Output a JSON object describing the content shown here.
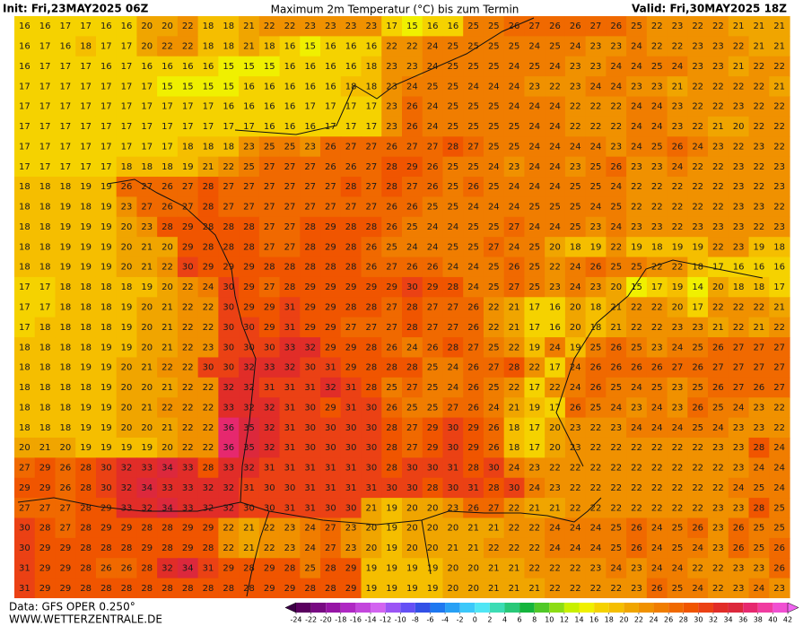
{
  "header": {
    "init": "Init: Fri,23MAY2025 06Z",
    "title": "Maximum 2m Temperatur (°C) bis zum Termin",
    "valid": "Valid: Fri,30MAY2025 18Z"
  },
  "map": {
    "rows": [
      [
        16,
        16,
        17,
        17,
        16,
        16,
        20,
        20,
        22,
        18,
        18,
        21,
        22,
        22,
        23,
        23,
        23,
        23,
        17,
        15,
        16,
        16,
        25,
        25,
        26,
        27,
        26,
        26,
        27,
        26,
        25,
        22,
        23,
        22,
        22,
        21,
        21,
        21
      ],
      [
        16,
        17,
        16,
        18,
        17,
        17,
        20,
        22,
        22,
        18,
        18,
        21,
        18,
        16,
        15,
        16,
        16,
        16,
        22,
        22,
        24,
        25,
        25,
        25,
        25,
        24,
        25,
        24,
        23,
        23,
        24,
        22,
        22,
        23,
        23,
        22,
        21,
        21
      ],
      [
        16,
        17,
        17,
        17,
        16,
        17,
        16,
        16,
        16,
        16,
        15,
        15,
        15,
        16,
        16,
        16,
        16,
        18,
        23,
        23,
        24,
        25,
        25,
        25,
        24,
        25,
        24,
        23,
        23,
        24,
        24,
        25,
        24,
        23,
        23,
        21,
        22,
        22
      ],
      [
        17,
        17,
        17,
        17,
        17,
        17,
        17,
        15,
        15,
        15,
        15,
        16,
        16,
        16,
        16,
        16,
        18,
        18,
        23,
        24,
        25,
        25,
        24,
        24,
        24,
        23,
        22,
        23,
        24,
        24,
        23,
        23,
        21,
        22,
        22,
        22,
        22,
        21
      ],
      [
        17,
        17,
        17,
        17,
        17,
        17,
        17,
        17,
        17,
        17,
        16,
        16,
        16,
        16,
        17,
        17,
        17,
        17,
        23,
        26,
        24,
        25,
        25,
        25,
        24,
        24,
        24,
        22,
        22,
        22,
        24,
        24,
        23,
        22,
        22,
        23,
        22,
        22
      ],
      [
        17,
        17,
        17,
        17,
        17,
        17,
        17,
        17,
        17,
        17,
        17,
        17,
        16,
        16,
        16,
        17,
        17,
        17,
        23,
        26,
        24,
        25,
        25,
        25,
        25,
        24,
        24,
        22,
        22,
        22,
        24,
        24,
        23,
        22,
        21,
        20,
        22,
        22
      ],
      [
        17,
        17,
        17,
        17,
        17,
        17,
        17,
        17,
        18,
        18,
        18,
        23,
        25,
        25,
        23,
        26,
        27,
        27,
        26,
        27,
        27,
        28,
        27,
        25,
        25,
        24,
        24,
        24,
        24,
        23,
        24,
        25,
        26,
        24,
        23,
        22,
        23,
        22
      ],
      [
        17,
        17,
        17,
        17,
        17,
        18,
        18,
        18,
        19,
        21,
        22,
        25,
        27,
        27,
        27,
        26,
        26,
        27,
        28,
        29,
        26,
        25,
        25,
        24,
        23,
        24,
        24,
        23,
        25,
        26,
        23,
        23,
        24,
        22,
        22,
        23,
        22,
        23
      ],
      [
        18,
        18,
        18,
        19,
        19,
        26,
        27,
        26,
        27,
        28,
        27,
        27,
        27,
        27,
        27,
        27,
        28,
        27,
        28,
        27,
        26,
        25,
        26,
        25,
        24,
        24,
        24,
        25,
        25,
        24,
        22,
        22,
        22,
        22,
        22,
        23,
        22,
        23
      ],
      [
        18,
        18,
        19,
        18,
        19,
        23,
        27,
        26,
        27,
        28,
        27,
        27,
        27,
        27,
        27,
        27,
        27,
        27,
        26,
        26,
        25,
        25,
        24,
        24,
        24,
        25,
        25,
        25,
        24,
        25,
        22,
        22,
        22,
        22,
        22,
        23,
        23,
        22
      ],
      [
        18,
        18,
        19,
        19,
        19,
        20,
        23,
        28,
        29,
        28,
        28,
        28,
        27,
        27,
        28,
        29,
        28,
        28,
        26,
        25,
        24,
        24,
        25,
        25,
        27,
        24,
        24,
        25,
        23,
        24,
        23,
        23,
        22,
        23,
        23,
        23,
        22,
        23
      ],
      [
        18,
        18,
        19,
        19,
        19,
        20,
        21,
        20,
        29,
        28,
        28,
        28,
        27,
        27,
        28,
        29,
        28,
        26,
        25,
        24,
        24,
        25,
        25,
        27,
        24,
        25,
        20,
        18,
        19,
        22,
        19,
        18,
        19,
        19,
        22,
        23,
        19,
        18
      ],
      [
        18,
        18,
        19,
        19,
        19,
        20,
        21,
        22,
        30,
        29,
        29,
        29,
        28,
        28,
        28,
        28,
        28,
        26,
        27,
        26,
        26,
        24,
        24,
        25,
        26,
        25,
        22,
        24,
        26,
        25,
        25,
        22,
        22,
        18,
        17,
        16,
        16,
        16
      ],
      [
        17,
        17,
        18,
        18,
        18,
        18,
        19,
        20,
        22,
        24,
        30,
        29,
        27,
        28,
        29,
        29,
        29,
        29,
        29,
        30,
        29,
        28,
        24,
        25,
        27,
        25,
        23,
        24,
        23,
        20,
        15,
        17,
        19,
        14,
        20,
        18,
        18,
        17
      ],
      [
        17,
        17,
        18,
        18,
        18,
        19,
        20,
        21,
        22,
        22,
        30,
        29,
        29,
        31,
        29,
        29,
        28,
        28,
        27,
        28,
        27,
        27,
        26,
        22,
        21,
        17,
        16,
        20,
        18,
        21,
        22,
        22,
        20,
        17,
        22,
        22,
        22,
        21
      ],
      [
        17,
        18,
        18,
        18,
        18,
        19,
        20,
        21,
        22,
        22,
        30,
        30,
        29,
        31,
        29,
        29,
        27,
        27,
        27,
        28,
        27,
        27,
        26,
        22,
        21,
        17,
        16,
        20,
        18,
        21,
        22,
        22,
        23,
        23,
        21,
        22,
        21,
        22
      ],
      [
        18,
        18,
        18,
        18,
        19,
        19,
        20,
        21,
        22,
        23,
        30,
        30,
        30,
        33,
        32,
        29,
        29,
        28,
        26,
        24,
        26,
        28,
        27,
        25,
        22,
        19,
        24,
        19,
        25,
        26,
        25,
        23,
        24,
        25,
        26,
        27,
        27,
        27
      ],
      [
        18,
        18,
        18,
        19,
        19,
        20,
        21,
        22,
        22,
        30,
        30,
        32,
        33,
        32,
        30,
        31,
        29,
        28,
        28,
        28,
        25,
        24,
        26,
        27,
        28,
        22,
        17,
        24,
        26,
        26,
        26,
        26,
        27,
        26,
        27,
        27,
        27,
        27
      ],
      [
        18,
        18,
        18,
        18,
        19,
        20,
        20,
        21,
        22,
        22,
        32,
        32,
        31,
        31,
        31,
        32,
        31,
        28,
        25,
        27,
        25,
        24,
        26,
        25,
        22,
        17,
        22,
        24,
        26,
        25,
        24,
        25,
        23,
        25,
        26,
        27,
        26,
        27
      ],
      [
        18,
        18,
        18,
        19,
        19,
        20,
        21,
        22,
        22,
        22,
        33,
        32,
        32,
        31,
        30,
        29,
        31,
        30,
        26,
        25,
        25,
        27,
        26,
        24,
        21,
        19,
        17,
        26,
        25,
        24,
        23,
        24,
        23,
        26,
        25,
        24,
        23,
        22
      ],
      [
        18,
        18,
        18,
        19,
        19,
        20,
        20,
        21,
        22,
        22,
        36,
        35,
        32,
        31,
        30,
        30,
        30,
        30,
        28,
        27,
        29,
        30,
        29,
        26,
        18,
        17,
        20,
        23,
        22,
        23,
        24,
        24,
        24,
        25,
        24,
        23,
        23,
        22
      ],
      [
        20,
        21,
        20,
        19,
        19,
        19,
        19,
        20,
        22,
        22,
        36,
        35,
        32,
        31,
        30,
        30,
        30,
        30,
        28,
        27,
        29,
        30,
        29,
        26,
        18,
        17,
        20,
        23,
        22,
        22,
        22,
        22,
        22,
        22,
        23,
        23,
        28,
        24
      ],
      [
        27,
        29,
        26,
        28,
        30,
        32,
        33,
        34,
        33,
        28,
        33,
        32,
        31,
        31,
        31,
        31,
        31,
        30,
        28,
        30,
        30,
        31,
        28,
        30,
        24,
        23,
        22,
        22,
        22,
        22,
        22,
        22,
        22,
        22,
        22,
        23,
        24,
        24
      ],
      [
        29,
        29,
        26,
        28,
        30,
        32,
        34,
        33,
        33,
        32,
        32,
        31,
        30,
        30,
        31,
        31,
        31,
        31,
        30,
        30,
        28,
        30,
        31,
        28,
        30,
        24,
        23,
        22,
        22,
        22,
        22,
        22,
        22,
        22,
        22,
        24,
        25,
        24
      ],
      [
        27,
        27,
        27,
        28,
        29,
        33,
        32,
        34,
        33,
        32,
        32,
        30,
        30,
        31,
        31,
        30,
        30,
        21,
        19,
        20,
        20,
        23,
        26,
        27,
        22,
        21,
        21,
        22,
        22,
        22,
        22,
        22,
        22,
        22,
        23,
        23,
        28,
        25
      ],
      [
        30,
        28,
        27,
        28,
        29,
        29,
        28,
        28,
        29,
        29,
        22,
        21,
        22,
        23,
        24,
        27,
        23,
        20,
        19,
        20,
        20,
        20,
        21,
        21,
        22,
        22,
        24,
        24,
        24,
        25,
        26,
        24,
        25,
        26,
        23,
        26,
        25,
        25
      ],
      [
        30,
        29,
        29,
        28,
        28,
        28,
        29,
        28,
        29,
        28,
        22,
        21,
        22,
        23,
        24,
        27,
        23,
        20,
        19,
        20,
        20,
        21,
        21,
        22,
        22,
        22,
        24,
        24,
        24,
        25,
        26,
        24,
        25,
        24,
        23,
        26,
        25,
        26
      ],
      [
        31,
        29,
        29,
        28,
        26,
        26,
        28,
        32,
        34,
        31,
        29,
        28,
        29,
        28,
        25,
        28,
        29,
        19,
        19,
        19,
        19,
        20,
        20,
        21,
        21,
        22,
        22,
        22,
        23,
        24,
        23,
        24,
        24,
        22,
        22,
        23,
        23,
        26
      ],
      [
        31,
        29,
        29,
        28,
        28,
        28,
        28,
        28,
        28,
        28,
        28,
        28,
        29,
        29,
        28,
        28,
        29,
        19,
        19,
        19,
        19,
        20,
        20,
        21,
        21,
        21,
        22,
        22,
        22,
        22,
        23,
        26,
        25,
        24,
        22,
        23,
        24,
        23
      ]
    ]
  },
  "colorbar": {
    "ticks": [
      -24,
      -22,
      -20,
      -18,
      -16,
      -14,
      -12,
      -10,
      -8,
      -6,
      -4,
      -2,
      0,
      2,
      4,
      6,
      8,
      10,
      12,
      14,
      16,
      18,
      20,
      22,
      24,
      26,
      28,
      30,
      32,
      34,
      36,
      38,
      40,
      42
    ],
    "colors": [
      "#3c0046",
      "#5a005f",
      "#780a82",
      "#9614a5",
      "#af28c3",
      "#c346dc",
      "#d264f0",
      "#9b55f5",
      "#6450f5",
      "#3250e6",
      "#1e78f0",
      "#28a0f5",
      "#3cc8fa",
      "#50e6f5",
      "#3cdcb4",
      "#28c878",
      "#14b43c",
      "#50c828",
      "#8cdc14",
      "#c8f000",
      "#f0f000",
      "#f5d200",
      "#f5be00",
      "#f0a500",
      "#f09100",
      "#f07d00",
      "#f06900",
      "#f05500",
      "#eb4114",
      "#e12d28",
      "#dc283c",
      "#e6286e",
      "#f03ca0",
      "#f050d2",
      "#f064f0"
    ]
  },
  "footer": {
    "source": "Data: GFS OPER 0.250°",
    "site": "WWW.WETTERZENTRALE.DE"
  }
}
